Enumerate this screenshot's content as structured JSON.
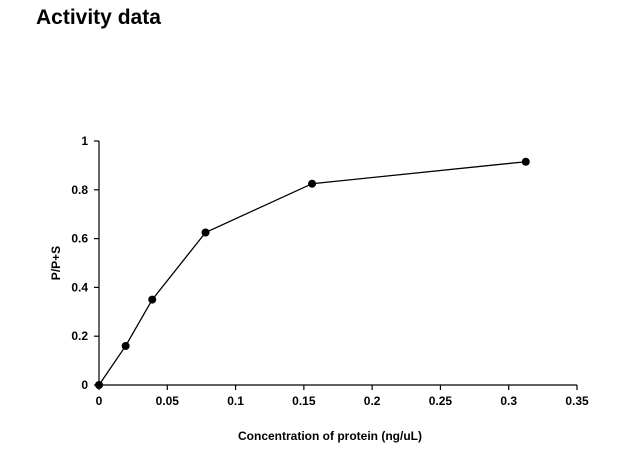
{
  "page": {
    "title": "Activity data"
  },
  "chart_data": {
    "type": "line",
    "title": "",
    "xlabel": "Concentration of protein (ng/uL)",
    "ylabel": "P/P+S",
    "xlim": [
      0,
      0.35
    ],
    "ylim": [
      0,
      1
    ],
    "xticks": [
      0,
      0.05,
      0.1,
      0.15,
      0.2,
      0.25,
      0.3,
      0.35
    ],
    "xtick_labels": [
      "0",
      "0.05",
      "0.1",
      "0.15",
      "0.2",
      "0.25",
      "0.3",
      "0.35"
    ],
    "yticks": [
      0,
      0.2,
      0.4,
      0.6,
      0.8,
      1
    ],
    "ytick_labels": [
      "0",
      "0.2",
      "0.4",
      "0.6",
      "0.8",
      "1"
    ],
    "grid": false,
    "legend": "none",
    "series": [
      {
        "x": [
          0,
          0.0195,
          0.039,
          0.078,
          0.156,
          0.3125
        ],
        "y": [
          0,
          0.16,
          0.35,
          0.625,
          0.825,
          0.915
        ],
        "color": "#000000",
        "marker": "circle"
      }
    ]
  }
}
